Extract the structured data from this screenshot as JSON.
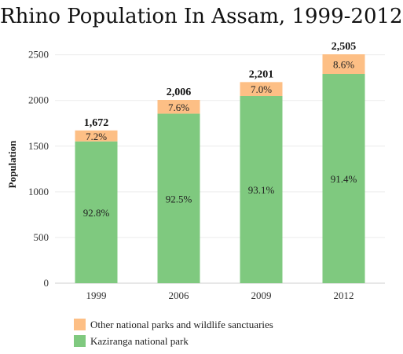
{
  "colors": {
    "kaziranga": "#7fc97f",
    "other": "#fdbf85",
    "grid": "#ececec",
    "axis": "#cfcfcf"
  },
  "chart_data": {
    "type": "bar",
    "stacked": true,
    "title": "Rhino Population In Assam, 1999-2012",
    "xlabel": "",
    "ylabel": "Population",
    "categories": [
      "1999",
      "2006",
      "2009",
      "2012"
    ],
    "ylim": [
      0,
      2600
    ],
    "yticks": [
      0,
      500,
      1000,
      1500,
      2000,
      2500
    ],
    "grid": true,
    "legend_position": "bottom",
    "totals": [
      1672,
      2006,
      2201,
      2505
    ],
    "total_labels": [
      "1,672",
      "2,006",
      "2,201",
      "2,505"
    ],
    "series": [
      {
        "name": "Kaziranga national park",
        "color_key": "kaziranga",
        "values": [
          1552,
          1855,
          2049,
          2290
        ],
        "labels": [
          "92.8%",
          "92.5%",
          "93.1%",
          "91.4%"
        ]
      },
      {
        "name": "Other national parks and wildlife sanctuaries",
        "color_key": "other",
        "values": [
          120,
          151,
          152,
          215
        ],
        "labels": [
          "7.2%",
          "7.6%",
          "7.0%",
          "8.6%"
        ]
      }
    ],
    "legend": [
      "Other national parks and wildlife sanctuaries",
      "Kaziranga national park"
    ]
  }
}
